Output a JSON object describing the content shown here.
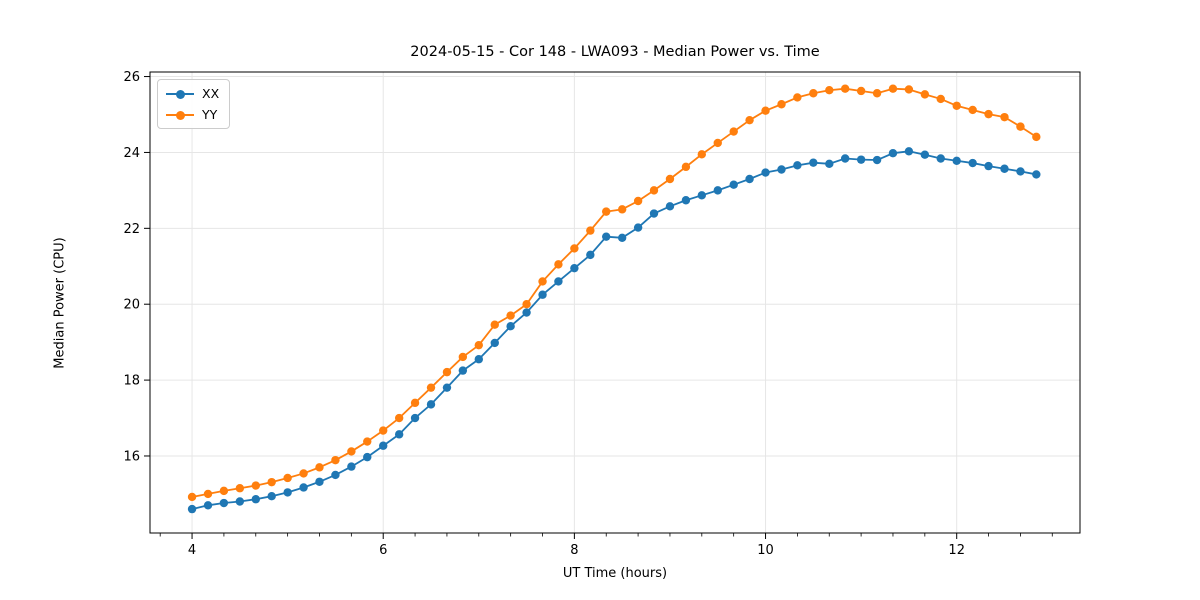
{
  "chart_data": {
    "type": "line",
    "title": "2024-05-15 - Cor 148 - LWA093 - Median Power vs. Time",
    "xlabel": "UT Time (hours)",
    "ylabel": "Median Power (CPU)",
    "x_ticks": [
      4,
      6,
      8,
      10,
      12
    ],
    "y_ticks": [
      16,
      18,
      20,
      22,
      24,
      26
    ],
    "xlim": [
      3.56,
      13.29
    ],
    "ylim": [
      13.97,
      26.12
    ],
    "minor_tick_step_x": 0.33333,
    "grid": true,
    "grid_color": "#e6e6e6",
    "spine_color": "#000000",
    "legend_position": "upper left",
    "x": [
      4.0,
      4.167,
      4.333,
      4.5,
      4.667,
      4.833,
      5.0,
      5.167,
      5.333,
      5.5,
      5.667,
      5.833,
      6.0,
      6.167,
      6.333,
      6.5,
      6.667,
      6.833,
      7.0,
      7.167,
      7.333,
      7.5,
      7.667,
      7.833,
      8.0,
      8.167,
      8.333,
      8.5,
      8.667,
      8.833,
      9.0,
      9.167,
      9.333,
      9.5,
      9.667,
      9.833,
      10.0,
      10.167,
      10.333,
      10.5,
      10.667,
      10.833,
      11.0,
      11.167,
      11.333,
      11.5,
      11.667,
      11.833,
      12.0,
      12.167,
      12.333,
      12.5,
      12.667,
      12.833
    ],
    "series": [
      {
        "name": "XX",
        "color": "#1f77b4",
        "values": [
          14.6,
          14.7,
          14.76,
          14.8,
          14.86,
          14.94,
          15.04,
          15.17,
          15.32,
          15.5,
          15.72,
          15.97,
          16.27,
          16.57,
          17.0,
          17.36,
          17.8,
          18.25,
          18.55,
          18.98,
          19.42,
          19.78,
          20.25,
          20.6,
          20.95,
          21.3,
          21.78,
          21.75,
          22.02,
          22.39,
          22.58,
          22.74,
          22.87,
          23.0,
          23.15,
          23.3,
          23.47,
          23.55,
          23.66,
          23.73,
          23.7,
          23.84,
          23.81,
          23.8,
          23.98,
          24.03,
          23.94,
          23.84,
          23.78,
          23.72,
          23.64,
          23.57,
          23.5,
          23.42
        ]
      },
      {
        "name": "YY",
        "color": "#ff7f0e",
        "values": [
          14.92,
          15.0,
          15.08,
          15.15,
          15.22,
          15.31,
          15.42,
          15.54,
          15.7,
          15.89,
          16.12,
          16.38,
          16.67,
          17.0,
          17.4,
          17.8,
          18.21,
          18.61,
          18.92,
          19.46,
          19.7,
          20.0,
          20.6,
          21.05,
          21.47,
          21.94,
          22.44,
          22.5,
          22.72,
          23.0,
          23.3,
          23.62,
          23.95,
          24.25,
          24.55,
          24.85,
          25.1,
          25.27,
          25.45,
          25.56,
          25.64,
          25.68,
          25.62,
          25.56,
          25.68,
          25.66,
          25.53,
          25.41,
          25.23,
          25.12,
          25.01,
          24.93,
          24.68,
          24.41
        ]
      }
    ]
  }
}
